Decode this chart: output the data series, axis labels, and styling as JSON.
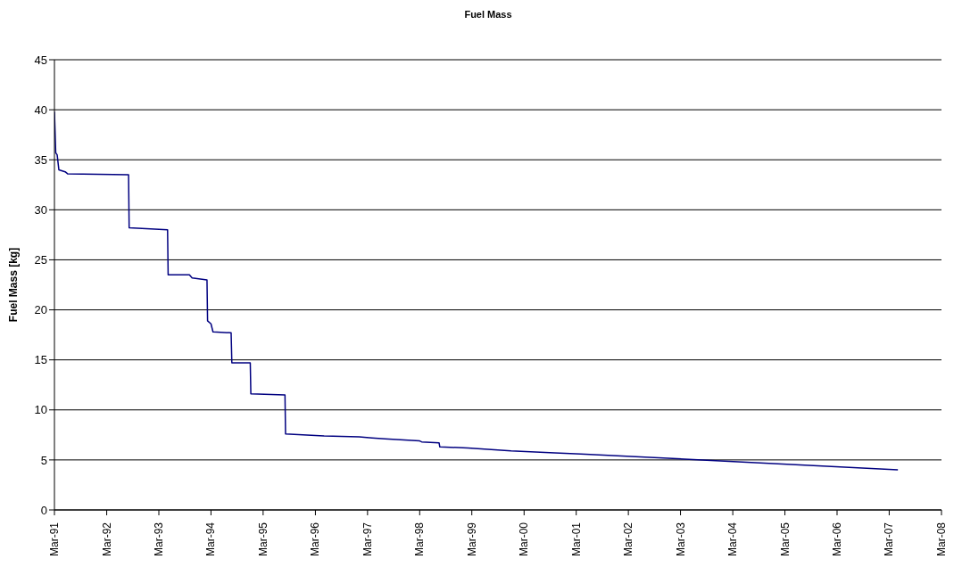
{
  "chart_data": {
    "type": "line",
    "title": "Fuel Mass",
    "ylabel": "Fuel Mass [kg]",
    "x": [
      "1991-03-01",
      "1991-03-10",
      "1991-03-20",
      "1991-04-01",
      "1991-05-15",
      "1991-06-01",
      "1992-08-01",
      "1992-08-05",
      "1993-05-01",
      "1993-05-05",
      "1993-10-01",
      "1993-10-20",
      "1994-02-01",
      "1994-02-05",
      "1994-03-01",
      "1994-03-15",
      "1994-07-20",
      "1994-07-25",
      "1994-12-01",
      "1994-12-05",
      "1995-08-01",
      "1995-08-05",
      "1996-05-01",
      "1997-01-01",
      "1997-04-01",
      "1997-07-01",
      "1998-03-01",
      "1998-03-15",
      "1998-07-15",
      "1998-07-20",
      "1999-02-01",
      "1999-12-01",
      "2000-10-01",
      "2001-04-01",
      "2003-08-01",
      "2007-05-01"
    ],
    "series": [
      {
        "color": "#000080",
        "values": [
          39.8,
          35.7,
          35.5,
          34.0,
          33.8,
          33.6,
          33.5,
          28.2,
          28.0,
          23.5,
          23.5,
          23.2,
          23.0,
          18.9,
          18.6,
          17.8,
          17.7,
          14.7,
          14.7,
          11.6,
          11.5,
          7.6,
          7.4,
          7.3,
          7.2,
          7.1,
          6.9,
          6.8,
          6.7,
          6.3,
          6.2,
          5.9,
          5.7,
          5.6,
          5.0,
          4.0
        ]
      }
    ],
    "xlim": [
      "1991-03",
      "2008-03"
    ],
    "xticks": [
      {
        "value": "1991-03",
        "label": "Mar-91"
      },
      {
        "value": "1992-03",
        "label": "Mar-92"
      },
      {
        "value": "1993-03",
        "label": "Mar-93"
      },
      {
        "value": "1994-03",
        "label": "Mar-94"
      },
      {
        "value": "1995-03",
        "label": "Mar-95"
      },
      {
        "value": "1996-03",
        "label": "Mar-96"
      },
      {
        "value": "1997-03",
        "label": "Mar-97"
      },
      {
        "value": "1998-03",
        "label": "Mar-98"
      },
      {
        "value": "1999-03",
        "label": "Mar-99"
      },
      {
        "value": "2000-03",
        "label": "Mar-00"
      },
      {
        "value": "2001-03",
        "label": "Mar-01"
      },
      {
        "value": "2002-03",
        "label": "Mar-02"
      },
      {
        "value": "2003-03",
        "label": "Mar-03"
      },
      {
        "value": "2004-03",
        "label": "Mar-04"
      },
      {
        "value": "2005-03",
        "label": "Mar-05"
      },
      {
        "value": "2006-03",
        "label": "Mar-06"
      },
      {
        "value": "2007-03",
        "label": "Mar-07"
      },
      {
        "value": "2008-03",
        "label": "Mar-08"
      }
    ],
    "ylim": [
      0,
      45
    ],
    "yticks": [
      0,
      5,
      10,
      15,
      20,
      25,
      30,
      35,
      40,
      45
    ],
    "grid": "y",
    "legend": false,
    "marker": "none",
    "line_style": "solid"
  }
}
